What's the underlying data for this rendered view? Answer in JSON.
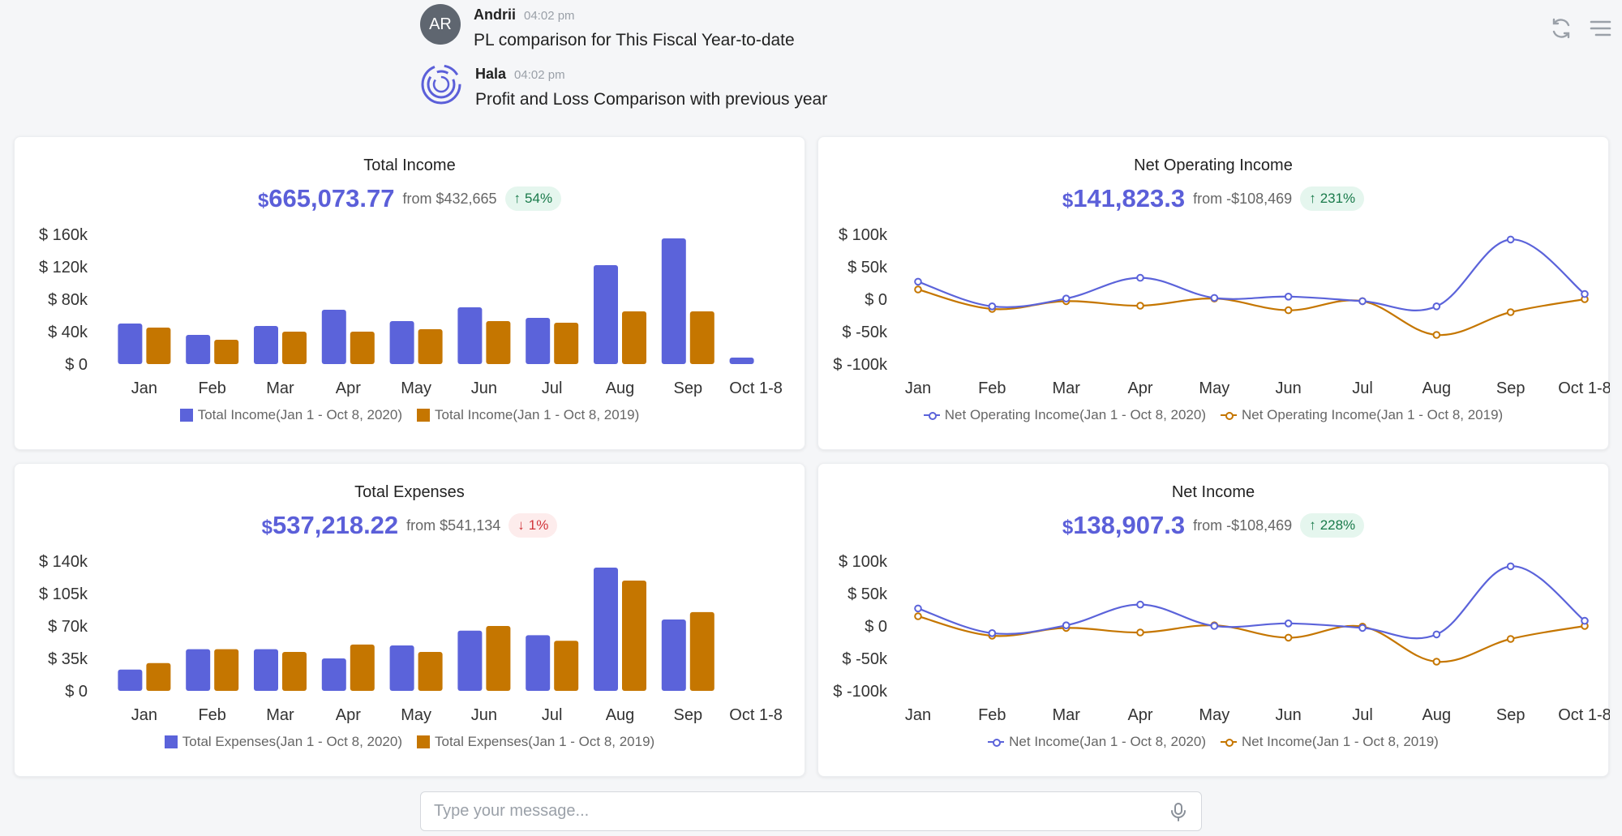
{
  "messages": [
    {
      "initials": "AR",
      "name": "Andrii",
      "time": "04:02 pm",
      "text": "PL comparison for This Fiscal Year-to-date"
    },
    {
      "name": "Hala",
      "time": "04:02 pm",
      "text": "Profit and Loss Comparison with previous year"
    }
  ],
  "composer": {
    "placeholder": "Type your message..."
  },
  "colors": {
    "series2020": "#5b63da",
    "series2019": "#c57600",
    "accent": "#5b5fd9"
  },
  "cards": [
    {
      "title": "Total Income",
      "currency": "$",
      "amount": "665,073.77",
      "from": "from $432,665",
      "change": "54%",
      "direction": "up"
    },
    {
      "title": "Net Operating Income",
      "currency": "$",
      "amount": "141,823.3",
      "from": "from -$108,469",
      "change": "231%",
      "direction": "up"
    },
    {
      "title": "Total Expenses",
      "currency": "$",
      "amount": "537,218.22",
      "from": "from $541,134",
      "change": "1%",
      "direction": "down"
    },
    {
      "title": "Net Income",
      "currency": "$",
      "amount": "138,907.3",
      "from": "from -$108,469",
      "change": "228%",
      "direction": "up"
    }
  ],
  "chart_data": [
    {
      "type": "bar",
      "categories": [
        "Jan",
        "Feb",
        "Mar",
        "Apr",
        "May",
        "Jun",
        "Jul",
        "Aug",
        "Sep",
        "Oct 1-8"
      ],
      "ylim": [
        0,
        160000
      ],
      "yticks": [
        0,
        40000,
        80000,
        120000,
        160000
      ],
      "ytick_labels": [
        "$ 0",
        "$ 40k",
        "$ 80k",
        "$ 120k",
        "$ 160k"
      ],
      "grid": false,
      "legend_position": "bottom",
      "series": [
        {
          "name": "Total Income(Jan 1 - Oct 8, 2020)",
          "values": [
            50000,
            36000,
            47000,
            67000,
            53000,
            70000,
            57000,
            122000,
            155000,
            8000
          ]
        },
        {
          "name": "Total Income(Jan 1 - Oct 8, 2019)",
          "values": [
            45000,
            30000,
            40000,
            40000,
            43000,
            53000,
            51000,
            65000,
            65000,
            0
          ]
        }
      ]
    },
    {
      "type": "line",
      "categories": [
        "Jan",
        "Feb",
        "Mar",
        "Apr",
        "May",
        "Jun",
        "Jul",
        "Aug",
        "Sep",
        "Oct 1-8"
      ],
      "ylim": [
        -100000,
        100000
      ],
      "yticks": [
        -100000,
        -50000,
        0,
        50000,
        100000
      ],
      "ytick_labels": [
        "$ -100k",
        "$ -50k",
        "$ 0",
        "$ 50k",
        "$ 100k"
      ],
      "grid": false,
      "legend_position": "bottom",
      "series": [
        {
          "name": "Net Operating Income(Jan 1 - Oct 8, 2020)",
          "values": [
            27000,
            -11000,
            1000,
            33000,
            2000,
            4000,
            -3000,
            -11000,
            92000,
            8000
          ]
        },
        {
          "name": "Net Operating Income(Jan 1 - Oct 8, 2019)",
          "values": [
            15000,
            -15000,
            -3000,
            -10000,
            1000,
            -17000,
            -3000,
            -55000,
            -20000,
            0
          ]
        }
      ]
    },
    {
      "type": "bar",
      "categories": [
        "Jan",
        "Feb",
        "Mar",
        "Apr",
        "May",
        "Jun",
        "Jul",
        "Aug",
        "Sep",
        "Oct 1-8"
      ],
      "ylim": [
        0,
        140000
      ],
      "yticks": [
        0,
        35000,
        70000,
        105000,
        140000
      ],
      "ytick_labels": [
        "$ 0",
        "$ 35k",
        "$ 70k",
        "$ 105k",
        "$ 140k"
      ],
      "grid": false,
      "legend_position": "bottom",
      "series": [
        {
          "name": "Total Expenses(Jan 1 - Oct 8, 2020)",
          "values": [
            23000,
            45000,
            45000,
            35000,
            49000,
            65000,
            60000,
            133000,
            77000,
            0
          ]
        },
        {
          "name": "Total Expenses(Jan 1 - Oct 8, 2019)",
          "values": [
            30000,
            45000,
            42000,
            50000,
            42000,
            70000,
            54000,
            119000,
            85000,
            0
          ]
        }
      ]
    },
    {
      "type": "line",
      "categories": [
        "Jan",
        "Feb",
        "Mar",
        "Apr",
        "May",
        "Jun",
        "Jul",
        "Aug",
        "Sep",
        "Oct 1-8"
      ],
      "ylim": [
        -100000,
        100000
      ],
      "yticks": [
        -100000,
        -50000,
        0,
        50000,
        100000
      ],
      "ytick_labels": [
        "$ -100k",
        "$ -50k",
        "$ 0",
        "$ 50k",
        "$ 100k"
      ],
      "grid": false,
      "legend_position": "bottom",
      "series": [
        {
          "name": "Net Income(Jan 1 - Oct 8, 2020)",
          "values": [
            27000,
            -11000,
            1000,
            33000,
            0,
            4000,
            -3000,
            -13000,
            92000,
            8000
          ]
        },
        {
          "name": "Net Income(Jan 1 - Oct 8, 2019)",
          "values": [
            15000,
            -15000,
            -3000,
            -10000,
            1000,
            -18000,
            -1000,
            -55000,
            -20000,
            0
          ]
        }
      ]
    }
  ]
}
